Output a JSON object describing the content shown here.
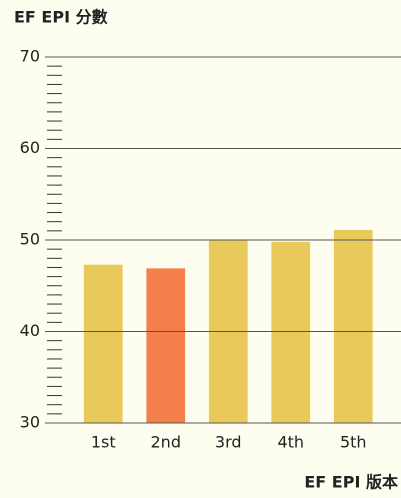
{
  "chart_data": {
    "type": "bar",
    "title": "EF EPI 分數",
    "x_label": "EF EPI 版本",
    "categories": [
      "1st",
      "2nd",
      "3rd",
      "4th",
      "5th"
    ],
    "values": [
      47.3,
      46.9,
      50.0,
      49.8,
      51.1
    ],
    "colors": [
      "#e8c95a",
      "#f47f4b",
      "#e8c95a",
      "#e8c95a",
      "#e8c95a"
    ],
    "ylim": [
      30,
      70
    ],
    "yticks": [
      30,
      40,
      50,
      60,
      70
    ],
    "yminor": 1,
    "grid": true
  }
}
